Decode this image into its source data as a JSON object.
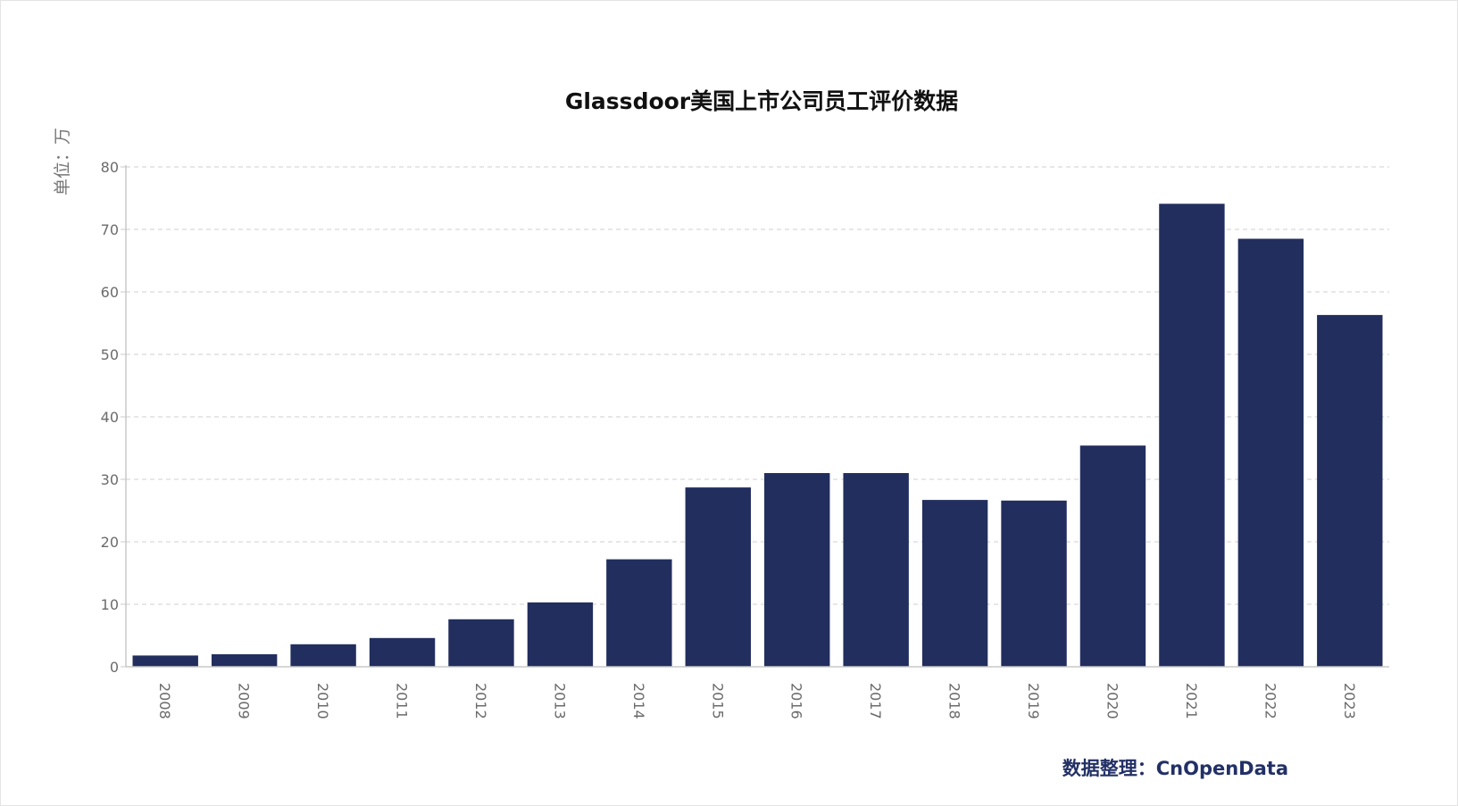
{
  "chart_data": {
    "type": "bar",
    "title": "Glassdoor美国上市公司员工评价数据",
    "unit_label": "单位：万",
    "categories": [
      "2008",
      "2009",
      "2010",
      "2011",
      "2012",
      "2013",
      "2014",
      "2015",
      "2016",
      "2017",
      "2018",
      "2019",
      "2020",
      "2021",
      "2022",
      "2023"
    ],
    "values": [
      1.8,
      2.0,
      3.6,
      4.6,
      7.6,
      10.3,
      17.2,
      28.7,
      31.0,
      31.0,
      26.7,
      26.6,
      35.4,
      74.1,
      68.5,
      56.3
    ],
    "ylim": [
      0,
      80
    ],
    "yticks": [
      0,
      10,
      20,
      30,
      40,
      50,
      60,
      70,
      80
    ],
    "grid": true,
    "legend": "none",
    "bar_color": "#222e5e"
  },
  "source_note": "数据整理：CnOpenData"
}
